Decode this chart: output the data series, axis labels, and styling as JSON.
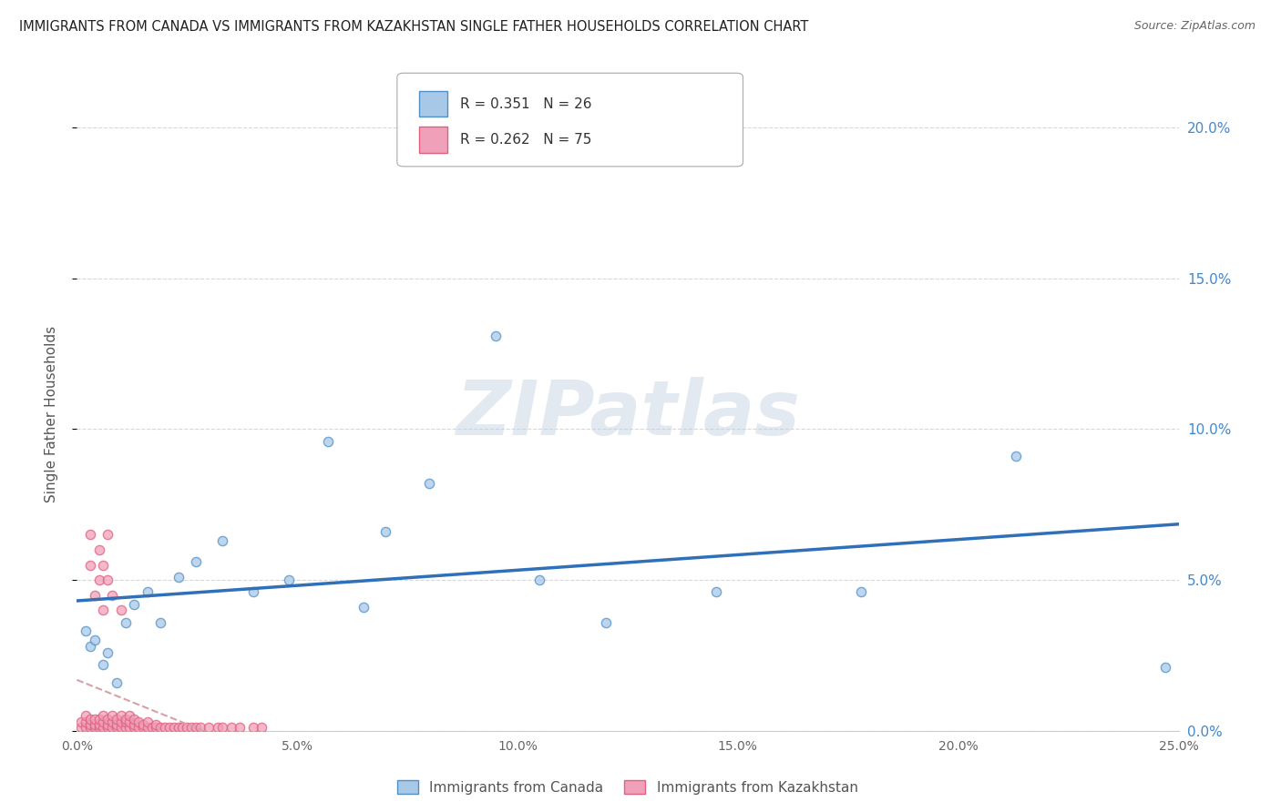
{
  "title": "IMMIGRANTS FROM CANADA VS IMMIGRANTS FROM KAZAKHSTAN SINGLE FATHER HOUSEHOLDS CORRELATION CHART",
  "source": "Source: ZipAtlas.com",
  "ylabel": "Single Father Households",
  "xmin": 0.0,
  "xmax": 0.25,
  "ymin": 0.0,
  "ymax": 0.21,
  "canada_R": 0.351,
  "canada_N": 26,
  "kazakhstan_R": 0.262,
  "kazakhstan_N": 75,
  "canada_color": "#a8c8e8",
  "kazakhstan_color": "#f0a0b8",
  "canada_edge_color": "#5090c8",
  "kazakhstan_edge_color": "#e06080",
  "canada_line_color": "#3070b8",
  "kazakhstan_line_color": "#c0a0a8",
  "canada_x": [
    0.002,
    0.003,
    0.004,
    0.006,
    0.007,
    0.009,
    0.011,
    0.013,
    0.016,
    0.019,
    0.023,
    0.027,
    0.033,
    0.04,
    0.048,
    0.057,
    0.065,
    0.07,
    0.08,
    0.095,
    0.105,
    0.12,
    0.145,
    0.178,
    0.213,
    0.247
  ],
  "canada_y": [
    0.033,
    0.028,
    0.03,
    0.022,
    0.026,
    0.016,
    0.036,
    0.042,
    0.046,
    0.036,
    0.051,
    0.056,
    0.063,
    0.046,
    0.05,
    0.096,
    0.041,
    0.066,
    0.082,
    0.131,
    0.05,
    0.036,
    0.046,
    0.046,
    0.091,
    0.021
  ],
  "kazakhstan_x": [
    0.001,
    0.001,
    0.002,
    0.002,
    0.002,
    0.003,
    0.003,
    0.003,
    0.003,
    0.003,
    0.004,
    0.004,
    0.004,
    0.004,
    0.005,
    0.005,
    0.005,
    0.005,
    0.005,
    0.006,
    0.006,
    0.006,
    0.006,
    0.006,
    0.007,
    0.007,
    0.007,
    0.007,
    0.007,
    0.008,
    0.008,
    0.008,
    0.008,
    0.009,
    0.009,
    0.009,
    0.01,
    0.01,
    0.01,
    0.01,
    0.011,
    0.011,
    0.011,
    0.012,
    0.012,
    0.012,
    0.013,
    0.013,
    0.013,
    0.014,
    0.014,
    0.015,
    0.015,
    0.016,
    0.016,
    0.017,
    0.018,
    0.018,
    0.019,
    0.02,
    0.021,
    0.022,
    0.023,
    0.024,
    0.025,
    0.026,
    0.027,
    0.028,
    0.03,
    0.032,
    0.033,
    0.035,
    0.037,
    0.04,
    0.042
  ],
  "kazakhstan_y": [
    0.001,
    0.003,
    0.001,
    0.003,
    0.005,
    0.001,
    0.002,
    0.004,
    0.055,
    0.065,
    0.001,
    0.002,
    0.004,
    0.045,
    0.001,
    0.002,
    0.004,
    0.05,
    0.06,
    0.001,
    0.003,
    0.005,
    0.04,
    0.055,
    0.001,
    0.002,
    0.004,
    0.05,
    0.065,
    0.001,
    0.003,
    0.005,
    0.045,
    0.001,
    0.002,
    0.004,
    0.001,
    0.003,
    0.005,
    0.04,
    0.001,
    0.003,
    0.004,
    0.001,
    0.003,
    0.005,
    0.001,
    0.002,
    0.004,
    0.001,
    0.003,
    0.001,
    0.002,
    0.001,
    0.003,
    0.001,
    0.001,
    0.002,
    0.001,
    0.001,
    0.001,
    0.001,
    0.001,
    0.001,
    0.001,
    0.001,
    0.001,
    0.001,
    0.001,
    0.001,
    0.001,
    0.001,
    0.001,
    0.001,
    0.001
  ],
  "watermark_text": "ZIPatlas",
  "background_color": "#ffffff",
  "grid_color": "#d8d8d8"
}
